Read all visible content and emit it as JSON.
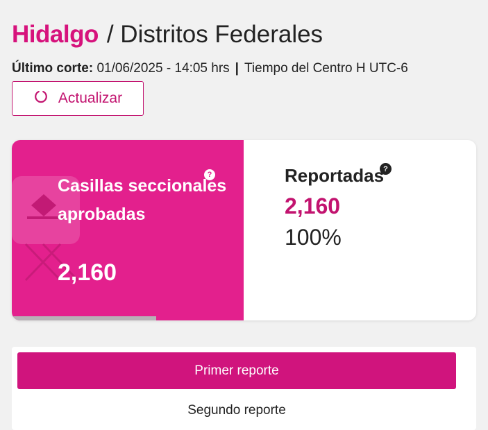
{
  "header": {
    "state": "Hidalgo",
    "separator": "/",
    "section": "Distritos Federales"
  },
  "cut": {
    "label": "Último corte:",
    "datetime": "01/06/2025 - 14:05 hrs",
    "divider": "|",
    "timezone": "Tiempo del Centro H UTC-6"
  },
  "refresh": {
    "label": "Actualizar",
    "icon": "refresh-icon"
  },
  "summary": {
    "approved_label": "Casillas seccionales aprobadas",
    "approved_value": "2,160",
    "help_icon": "help-icon",
    "reported_label": "Reportadas",
    "reported_value": "2,160",
    "reported_percent": "100%"
  },
  "reports": {
    "primary_label": "Primer reporte",
    "secondary_label": "Segundo reporte"
  },
  "colors": {
    "accent": "#d6127c",
    "card_left_bg": "#e3208d",
    "button_primary": "#d0147d",
    "background": "#f1f1f1"
  }
}
